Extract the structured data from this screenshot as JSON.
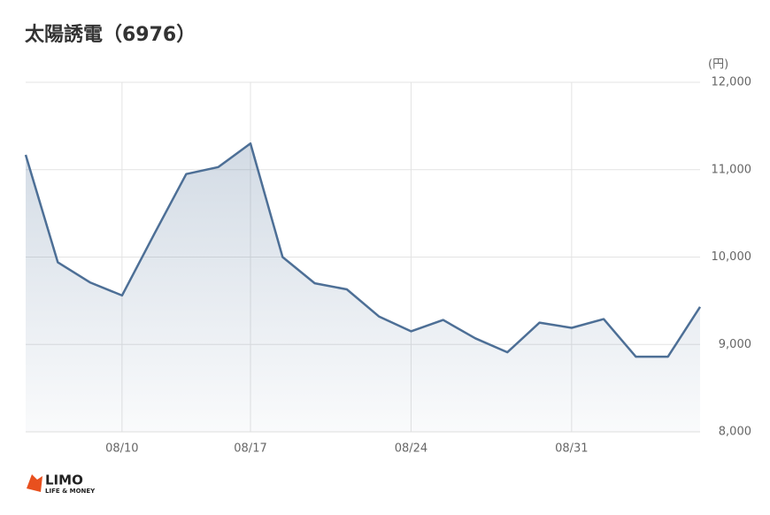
{
  "chart_data": {
    "type": "area-line",
    "title": "太陽誘電（6976）",
    "y_unit": "(円)",
    "categories": [
      null,
      null,
      null,
      "08/10",
      null,
      null,
      null,
      "08/17",
      null,
      null,
      null,
      null,
      "08/24",
      null,
      null,
      null,
      null,
      "08/31",
      null,
      null,
      null,
      null
    ],
    "values": [
      11170,
      9940,
      9710,
      9560,
      10260,
      10950,
      11030,
      11300,
      10000,
      9700,
      9630,
      9320,
      9150,
      9280,
      9070,
      8910,
      9250,
      9190,
      9290,
      8860,
      8860,
      9430
    ],
    "color": "#4d6f96",
    "ylim": [
      8000,
      12000
    ],
    "yticks": [
      {
        "value": 8000,
        "label": "8,000"
      },
      {
        "value": 9000,
        "label": "9,000"
      },
      {
        "value": 10000,
        "label": "10,000"
      },
      {
        "value": 11000,
        "label": "11,000"
      },
      {
        "value": 12000,
        "label": "12,000"
      }
    ],
    "grid": true
  },
  "logo": {
    "name": "LIMO",
    "tagline": "LIFE & MONEY"
  }
}
